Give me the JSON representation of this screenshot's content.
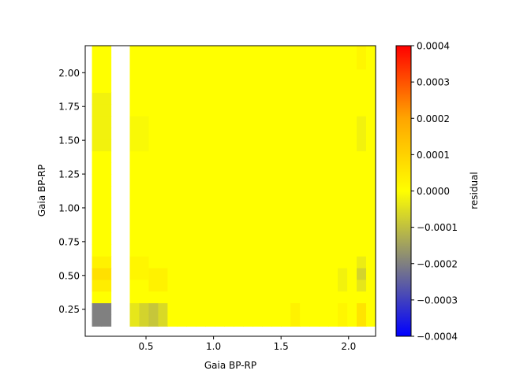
{
  "chart_data": {
    "type": "heatmap",
    "title": "",
    "xlabel": "Gaia BP-RP",
    "ylabel": "Gaia BP-RP",
    "xlim": [
      0.05,
      2.2
    ],
    "ylim": [
      0.05,
      2.2
    ],
    "xticks": [
      0.5,
      1.0,
      1.5,
      2.0
    ],
    "xtick_labels": [
      "0.5",
      "1.0",
      "1.5",
      "2.0"
    ],
    "yticks": [
      0.25,
      0.5,
      0.75,
      1.0,
      1.25,
      1.5,
      1.75,
      2.0
    ],
    "ytick_labels": [
      "0.25",
      "0.50",
      "0.75",
      "1.00",
      "1.25",
      "1.50",
      "1.75",
      "2.00"
    ],
    "grid": false,
    "cell_x_range": [
      0.1,
      2.2
    ],
    "cell_y_range": [
      0.125,
      2.2
    ],
    "nx": 30,
    "ny": 24,
    "masked_x_range": [
      0.22,
      0.38
    ],
    "colorbar": {
      "label": "residual",
      "vmin": -0.0004,
      "vmax": 0.0004,
      "ticks": [
        -0.0004,
        -0.0003,
        -0.0002,
        -0.0001,
        0.0,
        0.0001,
        0.0002,
        0.0003,
        0.0004
      ],
      "tick_labels": [
        "−0.0004",
        "−0.0003",
        "−0.0002",
        "−0.0001",
        "0.0000",
        "0.0001",
        "0.0002",
        "0.0003",
        "0.0004"
      ],
      "colormap": [
        "#0000ff",
        "#808080",
        "#ffff00",
        "#ffa500",
        "#ff0000"
      ]
    },
    "residual_features": [
      {
        "x": 0.16,
        "y": 0.17,
        "value": -0.00012
      },
      {
        "x": 0.16,
        "y": 0.22,
        "value": -8e-05
      },
      {
        "x": 0.16,
        "y": 0.48,
        "value": 4e-05
      },
      {
        "x": 0.16,
        "y": 0.57,
        "value": 3e-05
      },
      {
        "x": 0.45,
        "y": 0.17,
        "value": -4e-05
      },
      {
        "x": 0.52,
        "y": 0.17,
        "value": -3e-05
      },
      {
        "x": 0.6,
        "y": 0.17,
        "value": -6e-05
      },
      {
        "x": 0.6,
        "y": 0.48,
        "value": 3e-05
      },
      {
        "x": 0.45,
        "y": 0.57,
        "value": 2e-05
      },
      {
        "x": 1.6,
        "y": 0.17,
        "value": 3e-05
      },
      {
        "x": 1.95,
        "y": 0.17,
        "value": 2e-05
      },
      {
        "x": 2.1,
        "y": 0.17,
        "value": 6e-05
      },
      {
        "x": 2.1,
        "y": 0.48,
        "value": -4e-05
      },
      {
        "x": 2.1,
        "y": 0.57,
        "value": -3e-05
      },
      {
        "x": 1.95,
        "y": 0.48,
        "value": -2e-05
      },
      {
        "x": 0.16,
        "y": 1.75,
        "value": -2e-05
      },
      {
        "x": 0.16,
        "y": 1.55,
        "value": -2e-05
      },
      {
        "x": 0.45,
        "y": 1.55,
        "value": -1e-05
      },
      {
        "x": 2.1,
        "y": 1.55,
        "value": -2e-05
      },
      {
        "x": 2.1,
        "y": 2.12,
        "value": 2e-05
      }
    ]
  }
}
